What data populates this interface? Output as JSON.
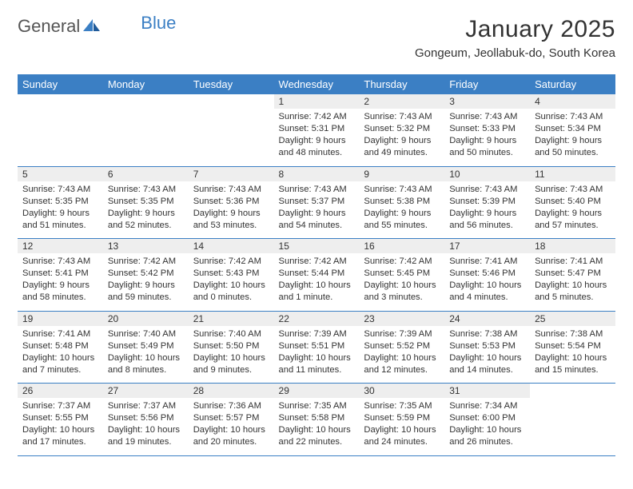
{
  "brand": {
    "name_part1": "General",
    "name_part2": "Blue"
  },
  "title": "January 2025",
  "location": "Gongeum, Jeollabuk-do, South Korea",
  "colors": {
    "header_bg": "#3b7fc4",
    "header_text": "#ffffff",
    "daynum_bg": "#eeeeee",
    "text": "#333333",
    "divider": "#3b7fc4",
    "page_bg": "#ffffff"
  },
  "weekdays": [
    "Sunday",
    "Monday",
    "Tuesday",
    "Wednesday",
    "Thursday",
    "Friday",
    "Saturday"
  ],
  "weeks": [
    [
      {
        "n": "",
        "sunrise": "",
        "sunset": "",
        "daylight": ""
      },
      {
        "n": "",
        "sunrise": "",
        "sunset": "",
        "daylight": ""
      },
      {
        "n": "",
        "sunrise": "",
        "sunset": "",
        "daylight": ""
      },
      {
        "n": "1",
        "sunrise": "Sunrise: 7:42 AM",
        "sunset": "Sunset: 5:31 PM",
        "daylight": "Daylight: 9 hours and 48 minutes."
      },
      {
        "n": "2",
        "sunrise": "Sunrise: 7:43 AM",
        "sunset": "Sunset: 5:32 PM",
        "daylight": "Daylight: 9 hours and 49 minutes."
      },
      {
        "n": "3",
        "sunrise": "Sunrise: 7:43 AM",
        "sunset": "Sunset: 5:33 PM",
        "daylight": "Daylight: 9 hours and 50 minutes."
      },
      {
        "n": "4",
        "sunrise": "Sunrise: 7:43 AM",
        "sunset": "Sunset: 5:34 PM",
        "daylight": "Daylight: 9 hours and 50 minutes."
      }
    ],
    [
      {
        "n": "5",
        "sunrise": "Sunrise: 7:43 AM",
        "sunset": "Sunset: 5:35 PM",
        "daylight": "Daylight: 9 hours and 51 minutes."
      },
      {
        "n": "6",
        "sunrise": "Sunrise: 7:43 AM",
        "sunset": "Sunset: 5:35 PM",
        "daylight": "Daylight: 9 hours and 52 minutes."
      },
      {
        "n": "7",
        "sunrise": "Sunrise: 7:43 AM",
        "sunset": "Sunset: 5:36 PM",
        "daylight": "Daylight: 9 hours and 53 minutes."
      },
      {
        "n": "8",
        "sunrise": "Sunrise: 7:43 AM",
        "sunset": "Sunset: 5:37 PM",
        "daylight": "Daylight: 9 hours and 54 minutes."
      },
      {
        "n": "9",
        "sunrise": "Sunrise: 7:43 AM",
        "sunset": "Sunset: 5:38 PM",
        "daylight": "Daylight: 9 hours and 55 minutes."
      },
      {
        "n": "10",
        "sunrise": "Sunrise: 7:43 AM",
        "sunset": "Sunset: 5:39 PM",
        "daylight": "Daylight: 9 hours and 56 minutes."
      },
      {
        "n": "11",
        "sunrise": "Sunrise: 7:43 AM",
        "sunset": "Sunset: 5:40 PM",
        "daylight": "Daylight: 9 hours and 57 minutes."
      }
    ],
    [
      {
        "n": "12",
        "sunrise": "Sunrise: 7:43 AM",
        "sunset": "Sunset: 5:41 PM",
        "daylight": "Daylight: 9 hours and 58 minutes."
      },
      {
        "n": "13",
        "sunrise": "Sunrise: 7:42 AM",
        "sunset": "Sunset: 5:42 PM",
        "daylight": "Daylight: 9 hours and 59 minutes."
      },
      {
        "n": "14",
        "sunrise": "Sunrise: 7:42 AM",
        "sunset": "Sunset: 5:43 PM",
        "daylight": "Daylight: 10 hours and 0 minutes."
      },
      {
        "n": "15",
        "sunrise": "Sunrise: 7:42 AM",
        "sunset": "Sunset: 5:44 PM",
        "daylight": "Daylight: 10 hours and 1 minute."
      },
      {
        "n": "16",
        "sunrise": "Sunrise: 7:42 AM",
        "sunset": "Sunset: 5:45 PM",
        "daylight": "Daylight: 10 hours and 3 minutes."
      },
      {
        "n": "17",
        "sunrise": "Sunrise: 7:41 AM",
        "sunset": "Sunset: 5:46 PM",
        "daylight": "Daylight: 10 hours and 4 minutes."
      },
      {
        "n": "18",
        "sunrise": "Sunrise: 7:41 AM",
        "sunset": "Sunset: 5:47 PM",
        "daylight": "Daylight: 10 hours and 5 minutes."
      }
    ],
    [
      {
        "n": "19",
        "sunrise": "Sunrise: 7:41 AM",
        "sunset": "Sunset: 5:48 PM",
        "daylight": "Daylight: 10 hours and 7 minutes."
      },
      {
        "n": "20",
        "sunrise": "Sunrise: 7:40 AM",
        "sunset": "Sunset: 5:49 PM",
        "daylight": "Daylight: 10 hours and 8 minutes."
      },
      {
        "n": "21",
        "sunrise": "Sunrise: 7:40 AM",
        "sunset": "Sunset: 5:50 PM",
        "daylight": "Daylight: 10 hours and 9 minutes."
      },
      {
        "n": "22",
        "sunrise": "Sunrise: 7:39 AM",
        "sunset": "Sunset: 5:51 PM",
        "daylight": "Daylight: 10 hours and 11 minutes."
      },
      {
        "n": "23",
        "sunrise": "Sunrise: 7:39 AM",
        "sunset": "Sunset: 5:52 PM",
        "daylight": "Daylight: 10 hours and 12 minutes."
      },
      {
        "n": "24",
        "sunrise": "Sunrise: 7:38 AM",
        "sunset": "Sunset: 5:53 PM",
        "daylight": "Daylight: 10 hours and 14 minutes."
      },
      {
        "n": "25",
        "sunrise": "Sunrise: 7:38 AM",
        "sunset": "Sunset: 5:54 PM",
        "daylight": "Daylight: 10 hours and 15 minutes."
      }
    ],
    [
      {
        "n": "26",
        "sunrise": "Sunrise: 7:37 AM",
        "sunset": "Sunset: 5:55 PM",
        "daylight": "Daylight: 10 hours and 17 minutes."
      },
      {
        "n": "27",
        "sunrise": "Sunrise: 7:37 AM",
        "sunset": "Sunset: 5:56 PM",
        "daylight": "Daylight: 10 hours and 19 minutes."
      },
      {
        "n": "28",
        "sunrise": "Sunrise: 7:36 AM",
        "sunset": "Sunset: 5:57 PM",
        "daylight": "Daylight: 10 hours and 20 minutes."
      },
      {
        "n": "29",
        "sunrise": "Sunrise: 7:35 AM",
        "sunset": "Sunset: 5:58 PM",
        "daylight": "Daylight: 10 hours and 22 minutes."
      },
      {
        "n": "30",
        "sunrise": "Sunrise: 7:35 AM",
        "sunset": "Sunset: 5:59 PM",
        "daylight": "Daylight: 10 hours and 24 minutes."
      },
      {
        "n": "31",
        "sunrise": "Sunrise: 7:34 AM",
        "sunset": "Sunset: 6:00 PM",
        "daylight": "Daylight: 10 hours and 26 minutes."
      },
      {
        "n": "",
        "sunrise": "",
        "sunset": "",
        "daylight": ""
      }
    ]
  ]
}
